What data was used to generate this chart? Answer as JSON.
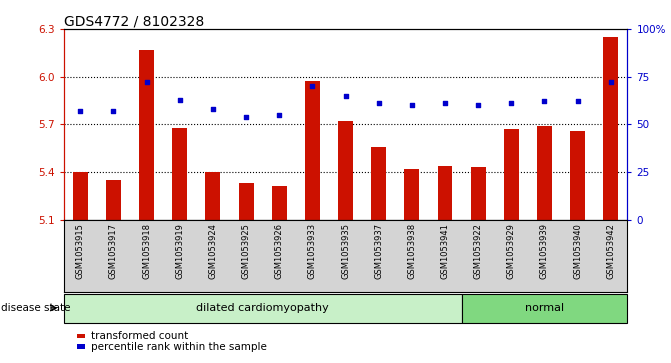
{
  "title": "GDS4772 / 8102328",
  "samples": [
    "GSM1053915",
    "GSM1053917",
    "GSM1053918",
    "GSM1053919",
    "GSM1053924",
    "GSM1053925",
    "GSM1053926",
    "GSM1053933",
    "GSM1053935",
    "GSM1053937",
    "GSM1053938",
    "GSM1053941",
    "GSM1053922",
    "GSM1053929",
    "GSM1053939",
    "GSM1053940",
    "GSM1053942"
  ],
  "bar_values": [
    5.4,
    5.35,
    6.17,
    5.68,
    5.4,
    5.33,
    5.31,
    5.97,
    5.72,
    5.56,
    5.42,
    5.44,
    5.43,
    5.67,
    5.69,
    5.66,
    6.25
  ],
  "dot_values": [
    57,
    57,
    72,
    63,
    58,
    54,
    55,
    70,
    65,
    61,
    60,
    61,
    60,
    61,
    62,
    62,
    72
  ],
  "ylim_left": [
    5.1,
    6.3
  ],
  "ylim_right": [
    0,
    100
  ],
  "yticks_left": [
    5.1,
    5.4,
    5.7,
    6.0,
    6.3
  ],
  "yticks_right": [
    0,
    25,
    50,
    75,
    100
  ],
  "ytick_labels_right": [
    "0",
    "25",
    "50",
    "75",
    "100%"
  ],
  "grid_values": [
    6.0,
    5.7,
    5.4
  ],
  "bar_color": "#cc1100",
  "dot_color": "#0000cc",
  "bar_width": 0.45,
  "groups": [
    {
      "label": "dilated cardiomyopathy",
      "start": 0,
      "end": 11,
      "color": "#c8f0c8"
    },
    {
      "label": "normal",
      "start": 12,
      "end": 16,
      "color": "#80d880"
    }
  ],
  "disease_state_label": "disease state",
  "legend_bar_label": "transformed count",
  "legend_dot_label": "percentile rank within the sample",
  "background_color": "#ffffff",
  "plot_bg_color": "#ffffff",
  "tick_label_color_left": "#cc1100",
  "tick_label_color_right": "#0000cc",
  "title_fontsize": 10,
  "tick_fontsize": 7.5,
  "label_fontsize": 8,
  "sample_fontsize": 6,
  "group_fontsize": 8,
  "legend_fontsize": 7.5
}
